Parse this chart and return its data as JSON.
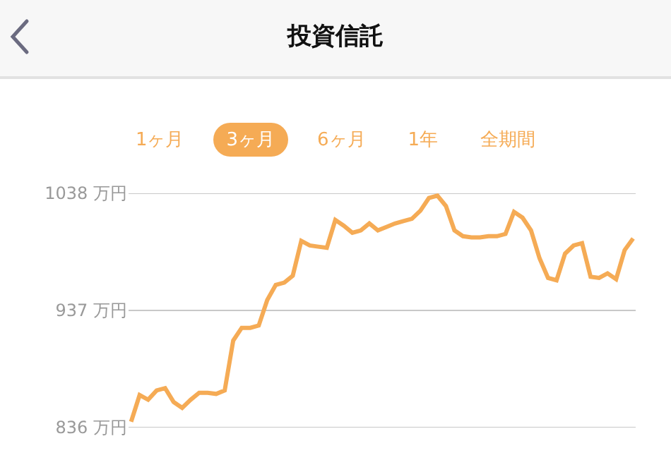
{
  "chart_data": {
    "type": "line",
    "title": "投資信託",
    "annotations": [
      "1ヶ月",
      "3ヶ月",
      "6ヶ月",
      "1年",
      "全期間"
    ],
    "categories": [
      null,
      null,
      null,
      null,
      null,
      null,
      null,
      null,
      null,
      null,
      null,
      null,
      null,
      null,
      null,
      null,
      null,
      null,
      null,
      null,
      null,
      null,
      null,
      null,
      null,
      null,
      null,
      null,
      null,
      null,
      null,
      null,
      null,
      null,
      null,
      null,
      null,
      null,
      null,
      null,
      null,
      null,
      null,
      null,
      null,
      null,
      null,
      null,
      null,
      null,
      null,
      null,
      null,
      null,
      null,
      null,
      null,
      null,
      null,
      null
    ],
    "series": [
      {
        "color": "#f5ab55",
        "values": [
          841,
          864,
          860,
          868,
          870,
          858,
          853,
          860,
          866,
          866,
          865,
          868,
          911,
          922,
          922,
          924,
          946,
          959,
          961,
          967,
          997,
          993,
          992,
          991,
          1015,
          1010,
          1004,
          1006,
          1012,
          1006,
          1009,
          1012,
          1014,
          1016,
          1023,
          1034,
          1036,
          1027,
          1006,
          1001,
          1000,
          1000,
          1001,
          1001,
          1003,
          1022,
          1017,
          1006,
          982,
          965,
          963,
          986,
          993,
          995,
          966,
          965,
          969,
          964,
          989,
          999
        ]
      }
    ],
    "ylim": [
      836,
      1038
    ],
    "yticks": [
      {
        "value": 836,
        "label": "836 万円"
      },
      {
        "value": 937,
        "label": "937 万円"
      },
      {
        "value": 1038,
        "label": "1038 万円"
      }
    ],
    "grid": "y",
    "tick_labels": "y",
    "marker": "none",
    "line_style": "solid"
  }
}
